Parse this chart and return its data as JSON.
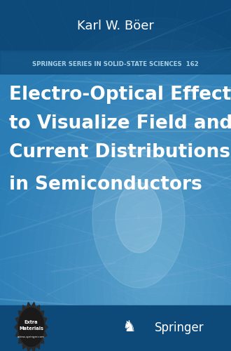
{
  "bg_color": "#0d4a7a",
  "panel_color": "#2980b9",
  "bottom_bar_color": "#1a5a8a",
  "author": "Karl W. Böer",
  "author_color": "#ffffff",
  "author_fontsize": 13,
  "series_label": "SPRINGER SERIES IN SOLID-STATE SCIENCES  162",
  "series_color": "#a8d0e6",
  "series_fontsize": 6.2,
  "title_line1": "Electro-Optical Effects",
  "title_line2": "to Visualize Field and",
  "title_line3": "Current Distributions",
  "title_line4": "in Semiconductors",
  "title_color": "#ffffff",
  "title_fontsize": 19.0,
  "springer_text": "Springer",
  "springer_color": "#ffffff",
  "springer_fontsize": 12,
  "knight_color": "#ffffff",
  "knight_fontsize": 16
}
